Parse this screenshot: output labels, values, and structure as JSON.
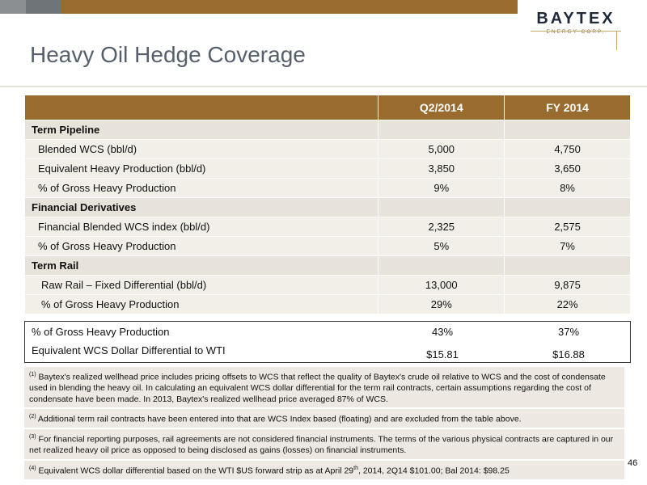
{
  "brand": {
    "name": "BAYTEX",
    "subtitle": "ENERGY CORP."
  },
  "title": "Heavy Oil Hedge Coverage",
  "table": {
    "headers": [
      "",
      "Q2/2014",
      "FY 2014"
    ],
    "rows": [
      {
        "label": "Term Pipeline",
        "section": true,
        "q2": "",
        "fy": ""
      },
      {
        "label": "Blended WCS (bbl/d)",
        "q2": "5,000",
        "fy": "4,750"
      },
      {
        "label": "Equivalent Heavy Production (bbl/d)",
        "q2": "3,850",
        "fy": "3,650"
      },
      {
        "label": "% of Gross Heavy Production",
        "q2": "9%",
        "fy": "8%"
      },
      {
        "label": "Financial Derivatives",
        "section": true,
        "q2": "",
        "fy": ""
      },
      {
        "label": "Financial Blended WCS index (bbl/d)",
        "q2": "2,325",
        "fy": "2,575"
      },
      {
        "label": "% of Gross Heavy Production",
        "q2": "5%",
        "fy": "7%"
      },
      {
        "label": "Term Rail",
        "section": true,
        "q2": "",
        "fy": ""
      },
      {
        "label": "Raw Rail – Fixed Differential (bbl/d)",
        "q2": "13,000",
        "fy": "9,875"
      },
      {
        "label": "% of Gross Heavy Production",
        "q2": "29%",
        "fy": "22%"
      }
    ]
  },
  "summary": [
    {
      "label": "% of Gross Heavy Production",
      "q2": "43%",
      "fy": "37%"
    },
    {
      "label": "Equivalent WCS Dollar Differential to WTI",
      "q2": "$15.81",
      "fy": "$16.88"
    }
  ],
  "footnotes": [
    {
      "mark": "(1)",
      "text": " Baytex's realized wellhead price includes pricing offsets to WCS that reflect the quality of Baytex's crude oil relative to WCS and the cost of condensate used in blending the heavy oil. In calculating an equivalent WCS dollar differential for the term rail contracts, certain assumptions regarding the cost of condensate have been made. In 2013, Baytex's realized wellhead price averaged 87% of WCS."
    },
    {
      "mark": "(2)",
      "text": " Additional term rail contracts have been entered into that are WCS Index based (floating) and are excluded from the table above."
    },
    {
      "mark": "(3)",
      "text": " For financial reporting purposes, rail agreements are not considered financial instruments. The terms of the various physical contracts are captured in our net realized heavy oil price as opposed to being disclosed as gains (losses) on financial instruments."
    },
    {
      "mark": "(4)",
      "text_a": " Equivalent WCS dollar differential based on the WTI $US forward strip as at April 29",
      "sup": "th",
      "text_b": ", 2014, 2Q14 $101.00; Bal 2014: $98.25"
    }
  ],
  "page_number": "46"
}
